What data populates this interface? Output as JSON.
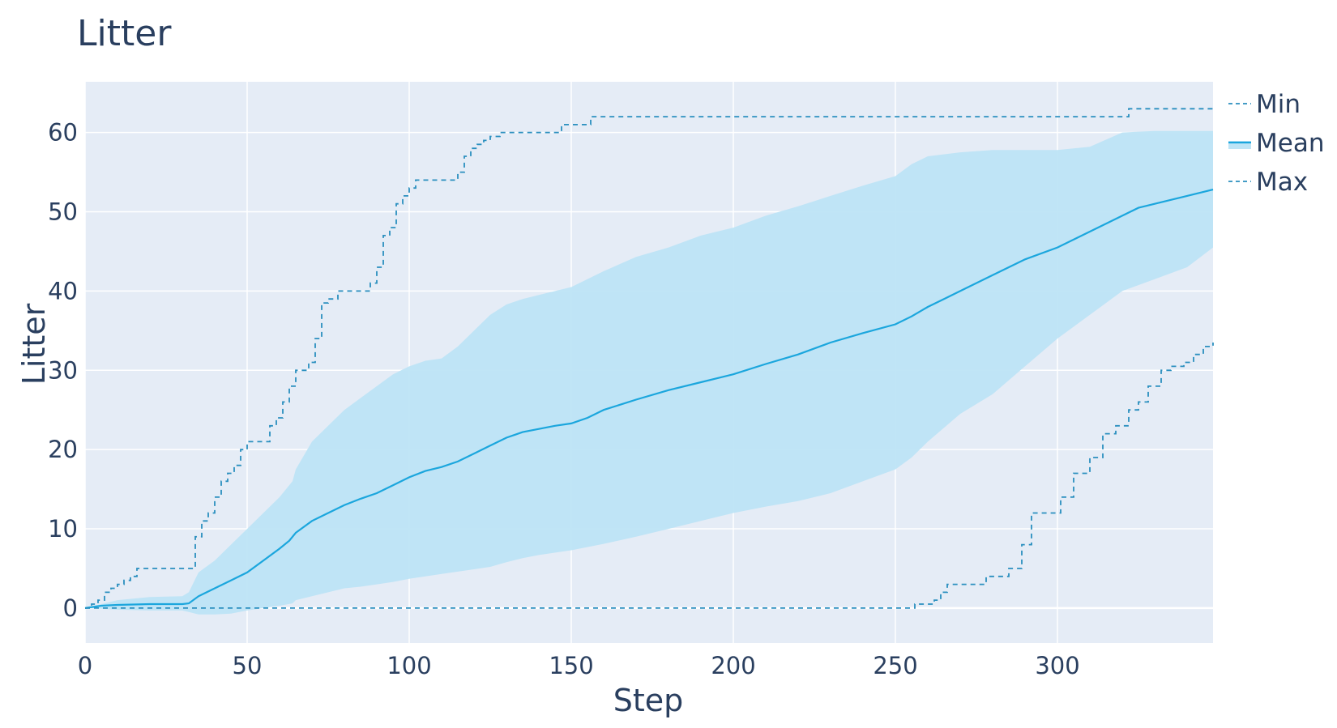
{
  "chart_data": {
    "type": "line",
    "title": "Litter",
    "xlabel": "Step",
    "ylabel": "Litter",
    "xlim": [
      0,
      348
    ],
    "ylim": [
      -4.4,
      66.4
    ],
    "xticks": [
      0,
      50,
      100,
      150,
      200,
      250,
      300
    ],
    "yticks": [
      0,
      10,
      20,
      30,
      40,
      50,
      60
    ],
    "grid": true,
    "legend_position": "right",
    "colors": {
      "plot_bg": "#e5ecf6",
      "grid": "#ffffff",
      "mean": "#1ba6dd",
      "band": "#bde4f6",
      "dashed": "#2a8fbf",
      "text": "#2a3f5f"
    },
    "series": [
      {
        "name": "Min",
        "style": "dashed",
        "x": [
          0,
          255,
          256,
          262,
          264,
          266,
          276,
          278,
          283,
          285,
          286,
          289,
          292,
          298,
          301,
          305,
          310,
          314,
          318,
          322,
          325,
          328,
          332,
          335,
          339,
          342,
          345,
          348
        ],
        "y": [
          0,
          0,
          0.5,
          1,
          2,
          3,
          3,
          4,
          4,
          5,
          5,
          8,
          12,
          12,
          14,
          17,
          19,
          22,
          23,
          25,
          26,
          28,
          30,
          30.5,
          31,
          32,
          33,
          33.5
        ]
      },
      {
        "name": "Mean",
        "style": "solid",
        "x": [
          0,
          5,
          10,
          20,
          30,
          32,
          35,
          40,
          45,
          50,
          55,
          60,
          63,
          65,
          70,
          75,
          80,
          85,
          90,
          95,
          100,
          105,
          110,
          115,
          120,
          125,
          130,
          135,
          140,
          145,
          150,
          155,
          160,
          170,
          180,
          190,
          200,
          210,
          220,
          230,
          240,
          250,
          255,
          260,
          265,
          270,
          280,
          290,
          300,
          310,
          320,
          325,
          330,
          340,
          348
        ],
        "y": [
          0,
          0.3,
          0.4,
          0.5,
          0.5,
          0.6,
          1.5,
          2.5,
          3.5,
          4.5,
          6,
          7.5,
          8.5,
          9.5,
          11,
          12,
          13,
          13.8,
          14.5,
          15.5,
          16.5,
          17.3,
          17.8,
          18.5,
          19.5,
          20.5,
          21.5,
          22.2,
          22.6,
          23,
          23.3,
          24,
          25,
          26.3,
          27.5,
          28.5,
          29.5,
          30.8,
          32,
          33.5,
          34.7,
          35.8,
          36.8,
          38,
          39,
          40,
          42,
          44,
          45.5,
          47.5,
          49.5,
          50.5,
          51,
          52,
          52.8
        ]
      },
      {
        "name": "Max",
        "style": "dashed",
        "x": [
          0,
          2,
          4,
          6,
          8,
          10,
          12,
          14,
          16,
          20,
          25,
          33,
          34,
          36,
          38,
          40,
          42,
          44,
          46,
          48,
          50,
          55,
          57,
          59,
          61,
          63,
          65,
          69,
          71,
          73,
          75,
          78,
          82,
          86,
          88,
          90,
          92,
          94,
          96,
          98,
          100,
          102,
          104,
          108,
          112,
          115,
          117,
          119,
          121,
          123,
          125,
          128,
          130,
          132,
          135,
          145,
          147,
          150,
          155,
          156,
          158,
          320,
          322,
          348
        ],
        "y": [
          0,
          0.5,
          1,
          2,
          2.5,
          3,
          3.5,
          4,
          5,
          5,
          5,
          5,
          9,
          11,
          12,
          14,
          16,
          17,
          18,
          20,
          21,
          21,
          23,
          24,
          26,
          28,
          30,
          31,
          34,
          38.5,
          39,
          40,
          40,
          40,
          41,
          43,
          47,
          48,
          51,
          52,
          53,
          54,
          54,
          54,
          54,
          55,
          57,
          58,
          58.5,
          59,
          59.5,
          60,
          60,
          60,
          60,
          60,
          61,
          61,
          61,
          62,
          62,
          62,
          63,
          63
        ]
      }
    ],
    "band": {
      "x": [
        0,
        10,
        20,
        30,
        32,
        35,
        40,
        45,
        50,
        55,
        60,
        64,
        65,
        70,
        75,
        80,
        85,
        90,
        95,
        100,
        105,
        110,
        115,
        120,
        125,
        130,
        135,
        140,
        150,
        160,
        170,
        180,
        190,
        200,
        210,
        220,
        230,
        240,
        250,
        255,
        260,
        270,
        280,
        290,
        300,
        310,
        320,
        330,
        340,
        348
      ],
      "upper": [
        0,
        1,
        1.4,
        1.5,
        2,
        4.5,
        6,
        8,
        10,
        12,
        14,
        16,
        17.5,
        21,
        23,
        25,
        26.5,
        28,
        29.5,
        30.5,
        31.2,
        31.5,
        33,
        35,
        37,
        38.3,
        39,
        39.5,
        40.5,
        42.5,
        44.3,
        45.5,
        47,
        48,
        49.5,
        50.7,
        52,
        53.3,
        54.5,
        56,
        57,
        57.5,
        57.8,
        57.8,
        57.8,
        58.2,
        60,
        60.2,
        60.2,
        60.2
      ],
      "lower": [
        0,
        -0.2,
        -0.3,
        -0.3,
        -0.5,
        -0.8,
        -0.8,
        -0.7,
        -0.3,
        0,
        0.3,
        0.6,
        1,
        1.5,
        2,
        2.5,
        2.7,
        3,
        3.3,
        3.7,
        4,
        4.3,
        4.6,
        4.9,
        5.2,
        5.8,
        6.3,
        6.7,
        7.3,
        8.1,
        9,
        10,
        11,
        12,
        12.8,
        13.5,
        14.5,
        16,
        17.5,
        19,
        21,
        24.5,
        27,
        30.5,
        34,
        37,
        40,
        41.5,
        43,
        45.5
      ]
    }
  }
}
